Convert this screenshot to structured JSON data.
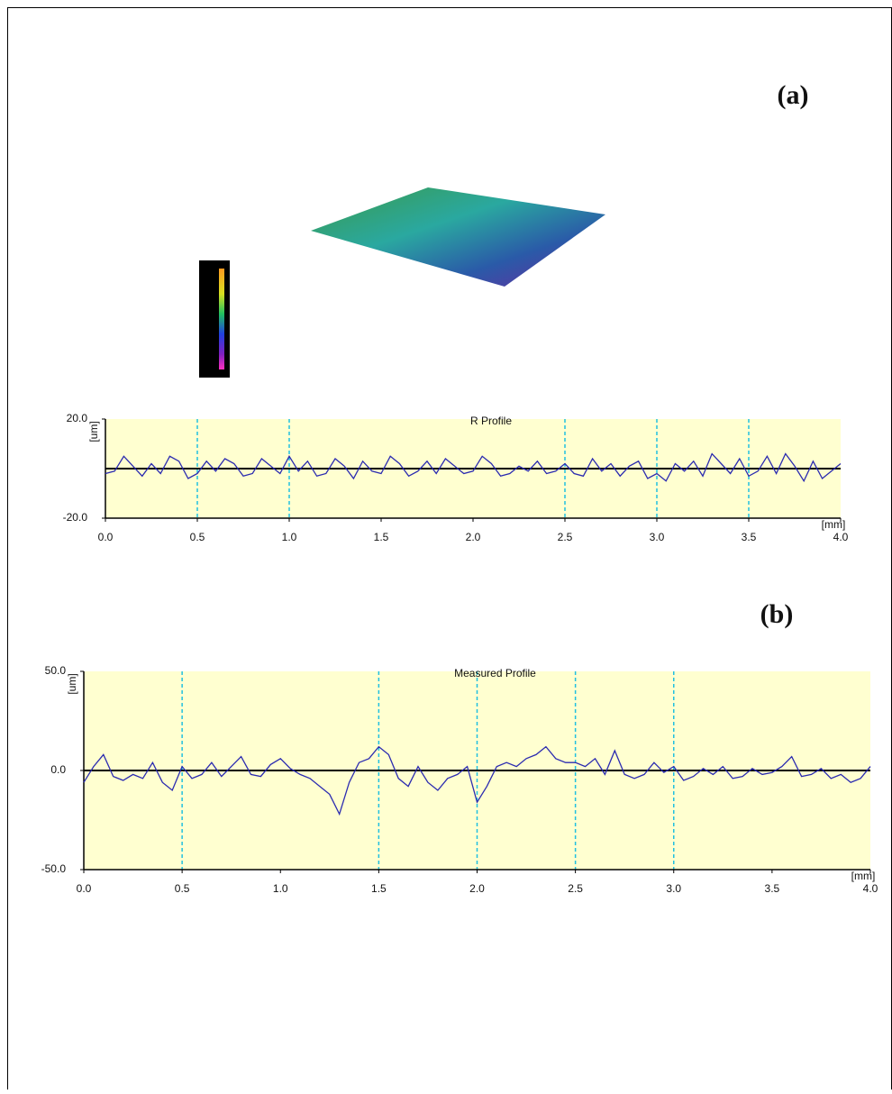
{
  "chart_data": [
    {
      "type": "line",
      "panel_label": "(a)",
      "title": "R Profile",
      "ylabel": "[um]",
      "xlabel": "[mm]",
      "xlim": [
        0,
        4
      ],
      "ylim": [
        -20,
        20
      ],
      "xticks": [
        {
          "value": 0,
          "label": "0.0"
        },
        0.5,
        {
          "value": 1,
          "label": "1.0"
        },
        1.5,
        {
          "value": 2,
          "label": "2.0"
        },
        2.5,
        {
          "value": 3,
          "label": "3.0"
        },
        3.5,
        {
          "value": 4,
          "label": "4.0"
        }
      ],
      "yticks": [
        {
          "value": -20,
          "label": "-20.0"
        },
        {
          "value": 20,
          "label": "20.0"
        }
      ],
      "vgrid": [
        0.5,
        1,
        2.5,
        3,
        3.5
      ],
      "series": [
        {
          "color": "#2b2bb0",
          "x": [
            0,
            0.05,
            0.1,
            0.15,
            0.2,
            0.25,
            0.3,
            0.35,
            0.4,
            0.45,
            0.5,
            0.55,
            0.6,
            0.65,
            0.7,
            0.75,
            0.8,
            0.85,
            0.9,
            0.95,
            1,
            1.05,
            1.1,
            1.15,
            1.2,
            1.25,
            1.3,
            1.35,
            1.4,
            1.45,
            1.5,
            1.55,
            1.6,
            1.65,
            1.7,
            1.75,
            1.8,
            1.85,
            1.9,
            1.95,
            2,
            2.05,
            2.1,
            2.15,
            2.2,
            2.25,
            2.3,
            2.35,
            2.4,
            2.45,
            2.5,
            2.55,
            2.6,
            2.65,
            2.7,
            2.75,
            2.8,
            2.85,
            2.9,
            2.95,
            3,
            3.05,
            3.1,
            3.15,
            3.2,
            3.25,
            3.3,
            3.35,
            3.4,
            3.45,
            3.5,
            3.55,
            3.6,
            3.65,
            3.7,
            3.75,
            3.8,
            3.85,
            3.9,
            3.95,
            4
          ],
          "values": [
            -2,
            -1,
            5,
            1,
            -3,
            2,
            -2,
            5,
            3,
            -4,
            -2,
            3,
            -1,
            4,
            2,
            -3,
            -2,
            4,
            1,
            -2,
            5,
            -1,
            3,
            -3,
            -2,
            4,
            1,
            -4,
            3,
            -1,
            -2,
            5,
            2,
            -3,
            -1,
            3,
            -2,
            4,
            1,
            -2,
            -1,
            5,
            2,
            -3,
            -2,
            1,
            -1,
            3,
            -2,
            -1,
            2,
            -2,
            -3,
            4,
            -1,
            2,
            -3,
            1,
            3,
            -4,
            -2,
            -5,
            2,
            -1,
            3,
            -3,
            6,
            2,
            -2,
            4,
            -3,
            -1,
            5,
            -2,
            6,
            1,
            -5,
            3,
            -4,
            -1,
            2
          ]
        }
      ]
    },
    {
      "type": "line",
      "panel_label": "(b)",
      "title": "Measured Profile",
      "ylabel": "[um]",
      "xlabel": "[mm]",
      "xlim": [
        0,
        4
      ],
      "ylim": [
        -50,
        50
      ],
      "xticks": [
        {
          "value": 0,
          "label": "0.0"
        },
        0.5,
        {
          "value": 1,
          "label": "1.0"
        },
        1.5,
        {
          "value": 2,
          "label": "2.0"
        },
        2.5,
        {
          "value": 3,
          "label": "3.0"
        },
        3.5,
        {
          "value": 4,
          "label": "4.0"
        }
      ],
      "yticks": [
        {
          "value": -50,
          "label": "-50.0"
        },
        {
          "value": 0,
          "label": "0.0"
        },
        {
          "value": 50,
          "label": "50.0"
        }
      ],
      "vgrid": [
        0.5,
        1.5,
        2,
        2.5,
        3
      ],
      "series": [
        {
          "color": "#2b2bb0",
          "x": [
            0,
            0.05,
            0.1,
            0.15,
            0.2,
            0.25,
            0.3,
            0.35,
            0.4,
            0.45,
            0.5,
            0.55,
            0.6,
            0.65,
            0.7,
            0.75,
            0.8,
            0.85,
            0.9,
            0.95,
            1,
            1.05,
            1.1,
            1.15,
            1.2,
            1.25,
            1.3,
            1.35,
            1.4,
            1.45,
            1.5,
            1.55,
            1.6,
            1.65,
            1.7,
            1.75,
            1.8,
            1.85,
            1.9,
            1.95,
            2,
            2.05,
            2.1,
            2.15,
            2.2,
            2.25,
            2.3,
            2.35,
            2.4,
            2.45,
            2.5,
            2.55,
            2.6,
            2.65,
            2.7,
            2.75,
            2.8,
            2.85,
            2.9,
            2.95,
            3,
            3.05,
            3.1,
            3.15,
            3.2,
            3.25,
            3.3,
            3.35,
            3.4,
            3.45,
            3.5,
            3.55,
            3.6,
            3.65,
            3.7,
            3.75,
            3.8,
            3.85,
            3.9,
            3.95,
            4
          ],
          "values": [
            -6,
            2,
            8,
            -3,
            -5,
            -2,
            -4,
            4,
            -6,
            -10,
            2,
            -4,
            -2,
            4,
            -3,
            2,
            7,
            -2,
            -3,
            3,
            6,
            1,
            -2,
            -4,
            -8,
            -12,
            -22,
            -6,
            4,
            6,
            12,
            8,
            -4,
            -8,
            2,
            -6,
            -10,
            -4,
            -2,
            2,
            -16,
            -8,
            2,
            4,
            2,
            6,
            8,
            12,
            6,
            4,
            4,
            2,
            6,
            -2,
            10,
            -2,
            -4,
            -2,
            4,
            -1,
            2,
            -5,
            -3,
            1,
            -2,
            2,
            -4,
            -3,
            1,
            -2,
            -1,
            2,
            7,
            -3,
            -2,
            1,
            -4,
            -2,
            -6,
            -4,
            2
          ]
        }
      ]
    }
  ]
}
